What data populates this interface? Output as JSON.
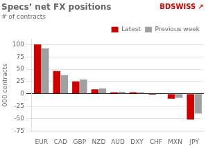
{
  "chart_data": {
    "type": "bar",
    "title": "Specs’ net FX positions",
    "subtitle": "# of contracts",
    "ylabel": "000 contracts",
    "annotations": [
      "BDSWISS",
      "↗"
    ],
    "categories": [
      "EUR",
      "CAD",
      "GBP",
      "NZD",
      "AUD",
      "DXY",
      "CHF",
      "MXN",
      "JPY"
    ],
    "series": [
      {
        "name": "Latest",
        "color": "#cc0000",
        "values": [
          100,
          46,
          25,
          9,
          3,
          3,
          -2,
          -10,
          -52
        ]
      },
      {
        "name": "Previous week",
        "color": "#a0a0a0",
        "values": [
          92,
          38,
          29,
          11,
          4,
          3,
          -1,
          -8,
          -40
        ]
      }
    ],
    "ylim": [
      -75,
      110
    ],
    "yticks": [
      -75,
      -50,
      -25,
      0,
      25,
      50,
      75,
      100
    ],
    "grid": true,
    "legend": "upper right"
  }
}
